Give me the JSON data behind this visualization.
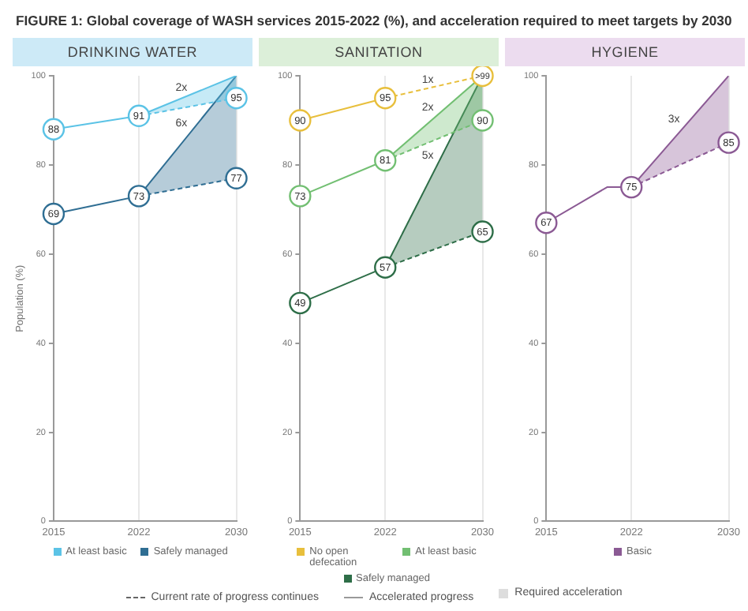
{
  "chart_data": [
    {
      "type": "other",
      "title": "FIGURE 1: Global coverage of WASH services 2015-2022 (%), and acceleration required to meet targets by 2030",
      "annotations": [
        "Current rate of progress continues",
        "Accelerated progress",
        "Required acceleration"
      ]
    },
    {
      "type": "line",
      "title": "DRINKING WATER",
      "ylabel": "Population (%)",
      "xlim": [
        2015,
        2030
      ],
      "xticks": [
        2015,
        2022,
        2030
      ],
      "ylim": [
        0,
        100
      ],
      "yticks": [
        0,
        20,
        40,
        60,
        80,
        100
      ],
      "grid": "x",
      "legend": "bottom",
      "annotations": [
        "2x",
        "6x"
      ],
      "series": [
        {
          "name": "At least basic",
          "color": "#5bc3e6",
          "x": [
            2015,
            2022
          ],
          "values": [
            88,
            91
          ],
          "marker": "circle",
          "value_labels": [
            "88",
            "91"
          ]
        },
        {
          "name": "Safely managed",
          "color": "#2f6e93",
          "x": [
            2015,
            2022
          ],
          "values": [
            69,
            73
          ],
          "marker": "circle",
          "value_labels": [
            "69",
            "73"
          ]
        },
        {
          "color": "#5bc3e6",
          "x": [
            2022,
            2030
          ],
          "values": [
            91,
            100
          ],
          "lower": [
            91,
            95
          ],
          "upper": [
            91,
            100
          ]
        },
        {
          "color": "#5bc3e6",
          "x": [
            2022,
            2030
          ],
          "values": [
            91,
            95
          ],
          "line_style": "dashed",
          "marker": "circle",
          "value_labels": [
            null,
            "95"
          ]
        },
        {
          "color": "#2f6e93",
          "x": [
            2022,
            2030
          ],
          "values": [
            73,
            100
          ],
          "lower": [
            73,
            77
          ],
          "upper": [
            73,
            100
          ]
        },
        {
          "color": "#2f6e93",
          "x": [
            2022,
            2030
          ],
          "values": [
            73,
            77
          ],
          "line_style": "dashed",
          "marker": "circle",
          "value_labels": [
            null,
            "77"
          ]
        }
      ]
    },
    {
      "type": "line",
      "title": "SANITATION",
      "xlim": [
        2015,
        2030
      ],
      "xticks": [
        2015,
        2022,
        2030
      ],
      "ylim": [
        0,
        100
      ],
      "yticks": [
        0,
        20,
        40,
        60,
        80,
        100
      ],
      "grid": "x",
      "legend": "bottom",
      "annotations": [
        "1x",
        "2x",
        "5x"
      ],
      "series": [
        {
          "name": "No open defecation",
          "color": "#e8bf3c",
          "x": [
            2015,
            2022
          ],
          "values": [
            90,
            95
          ],
          "marker": "circle",
          "value_labels": [
            "90",
            "95"
          ]
        },
        {
          "name": "At least basic",
          "color": "#72bf72",
          "x": [
            2015,
            2022
          ],
          "values": [
            73,
            81
          ],
          "marker": "circle",
          "value_labels": [
            "73",
            "81"
          ]
        },
        {
          "name": "Safely managed",
          "color": "#2e6e48",
          "x": [
            2015,
            2022
          ],
          "values": [
            49,
            57
          ],
          "marker": "circle",
          "value_labels": [
            "49",
            "57"
          ]
        },
        {
          "color": "#e8bf3c",
          "x": [
            2022,
            2030
          ],
          "values": [
            95,
            100
          ],
          "line_style": "dashed",
          "marker": "circle",
          "value_labels": [
            null,
            ">99"
          ]
        },
        {
          "color": "#72bf72",
          "x": [
            2022,
            2030
          ],
          "values": [
            81,
            100
          ],
          "lower": [
            81,
            90
          ],
          "upper": [
            81,
            100
          ]
        },
        {
          "color": "#72bf72",
          "x": [
            2022,
            2030
          ],
          "values": [
            81,
            90
          ],
          "line_style": "dashed",
          "marker": "circle",
          "value_labels": [
            null,
            "90"
          ]
        },
        {
          "color": "#2e6e48",
          "x": [
            2022,
            2030
          ],
          "values": [
            57,
            100
          ],
          "lower": [
            57,
            65
          ],
          "upper": [
            57,
            100
          ]
        },
        {
          "color": "#2e6e48",
          "x": [
            2022,
            2030
          ],
          "values": [
            57,
            65
          ],
          "line_style": "dashed",
          "marker": "circle",
          "value_labels": [
            null,
            "65"
          ]
        }
      ]
    },
    {
      "type": "line",
      "title": "HYGIENE",
      "xlim": [
        2015,
        2030
      ],
      "xticks": [
        2015,
        2022,
        2030
      ],
      "ylim": [
        0,
        100
      ],
      "yticks": [
        0,
        20,
        40,
        60,
        80,
        100
      ],
      "grid": "x",
      "legend": "bottom",
      "annotations": [
        "3x"
      ],
      "series": [
        {
          "name": "Basic",
          "color": "#8b5a94",
          "x": [
            2015,
            2020,
            2022
          ],
          "values": [
            67,
            75,
            75
          ],
          "marker": "circle",
          "value_labels": [
            "67",
            null,
            "75"
          ]
        },
        {
          "color": "#8b5a94",
          "x": [
            2022,
            2030
          ],
          "values": [
            75,
            100
          ],
          "lower": [
            75,
            85
          ],
          "upper": [
            75,
            100
          ]
        },
        {
          "color": "#8b5a94",
          "x": [
            2022,
            2030
          ],
          "values": [
            75,
            85
          ],
          "line_style": "dashed",
          "marker": "circle",
          "value_labels": [
            null,
            "85"
          ]
        }
      ]
    }
  ]
}
